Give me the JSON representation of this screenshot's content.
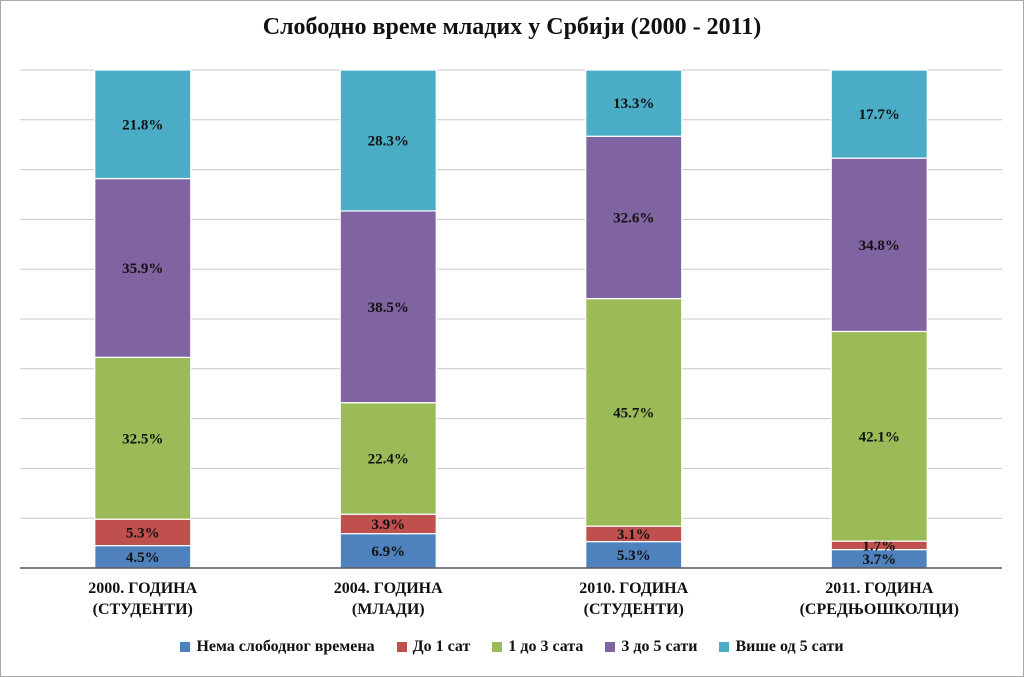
{
  "chart_data": {
    "type": "bar",
    "stacked": true,
    "percent_stacked": true,
    "title": "Слободно време младих у Србији (2000 - 2011)",
    "categories": [
      [
        "2000. ГОДИНА",
        "(СТУДЕНТИ)"
      ],
      [
        "2004. ГОДИНА",
        "(МЛАДИ)"
      ],
      [
        "2010. ГОДИНА",
        "(СТУДЕНТИ)"
      ],
      [
        "2011. ГОДИНА",
        "(СРЕДЊОШКОЛЦИ)"
      ]
    ],
    "series": [
      {
        "name": "Нема слободног времена",
        "color": "#4f81bd",
        "values": [
          4.5,
          6.9,
          5.3,
          3.7
        ],
        "labels": [
          "4.5%",
          "6.9%",
          "5.3%",
          "3.7%"
        ]
      },
      {
        "name": "До 1 сат",
        "color": "#c0504d",
        "values": [
          5.3,
          3.9,
          3.1,
          1.7
        ],
        "labels": [
          "5.3%",
          "3.9%",
          "3.1%",
          "1.7%"
        ]
      },
      {
        "name": "1 до 3 сата",
        "color": "#9bbb59",
        "values": [
          32.5,
          22.4,
          45.7,
          42.1
        ],
        "labels": [
          "32.5%",
          "22.4%",
          "45.7%",
          "42.1%"
        ]
      },
      {
        "name": "3 до 5 сати",
        "color": "#8064a2",
        "values": [
          35.9,
          38.5,
          32.6,
          34.8
        ],
        "labels": [
          "35.9%",
          "38.5%",
          "32.6%",
          "34.8%"
        ]
      },
      {
        "name": "Више од 5 сати",
        "color": "#4bacc6",
        "values": [
          21.8,
          28.3,
          13.3,
          17.7
        ],
        "labels": [
          "21.8%",
          "28.3%",
          "13.3%",
          "17.7%"
        ]
      }
    ],
    "ylim": [
      0,
      100
    ],
    "y_axis_visible": false,
    "grid": true,
    "legend_position": "bottom",
    "data_labels": true,
    "colors": {
      "grid": "#c8c8c8",
      "axis": "#555555",
      "text": "#111111",
      "border": "#a9a9a9"
    }
  }
}
